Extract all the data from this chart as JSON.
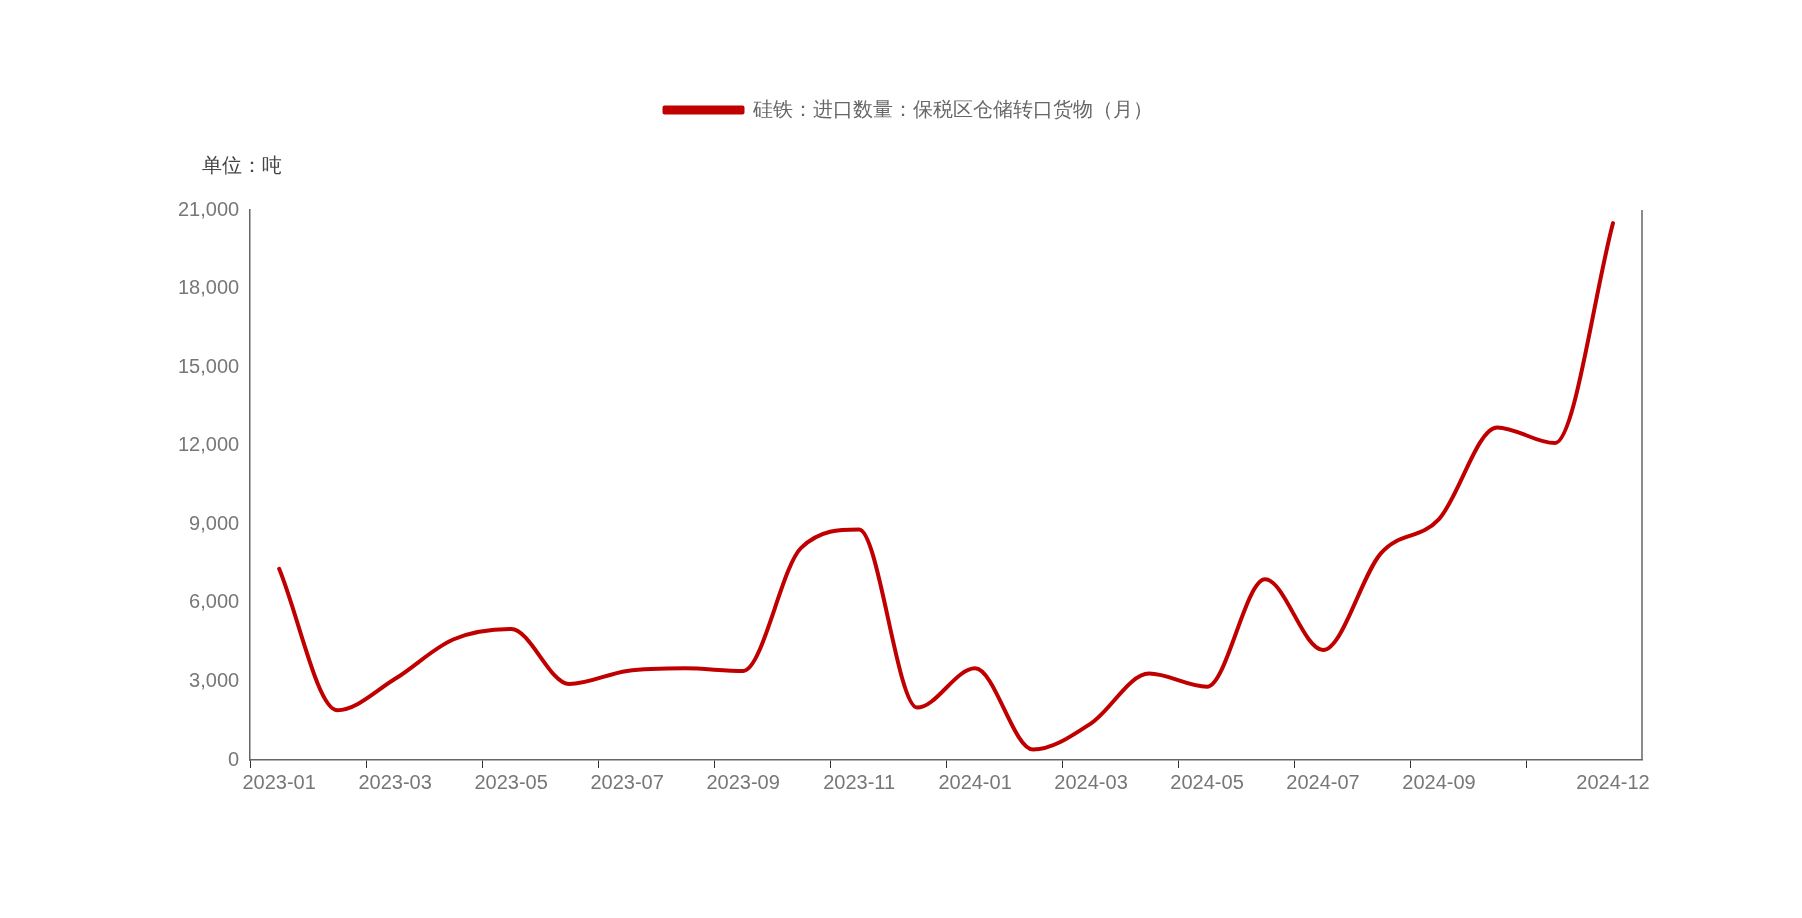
{
  "chart_data": {
    "type": "line",
    "ylabel": "单位：吨",
    "legend": "top",
    "categories": [
      "2023-01",
      null,
      "2023-03",
      null,
      "2023-05",
      null,
      "2023-07",
      null,
      "2023-09",
      null,
      "2023-11",
      null,
      "2024-01",
      null,
      "2024-03",
      null,
      "2024-05",
      null,
      "2024-07",
      null,
      "2024-09",
      null,
      null,
      "2024-12"
    ],
    "series": [
      {
        "name": "硅铁：进口数量：保税区仓储转口货物（月）",
        "color": "#c00000",
        "values": [
          7300,
          1900,
          3100,
          4600,
          5000,
          2900,
          3400,
          3500,
          3400,
          8100,
          8800,
          2000,
          3500,
          400,
          1400,
          3300,
          2800,
          6900,
          4200,
          7900,
          9200,
          12700,
          12100,
          20500
        ]
      }
    ],
    "ylim": [
      0,
      21000
    ],
    "yticks": [
      {
        "value": 0,
        "label": "0"
      },
      {
        "value": 3000,
        "label": "3,000"
      },
      {
        "value": 6000,
        "label": "6,000"
      },
      {
        "value": 9000,
        "label": "9,000"
      },
      {
        "value": 12000,
        "label": "12,000"
      },
      {
        "value": 15000,
        "label": "15,000"
      },
      {
        "value": 18000,
        "label": "18,000"
      },
      {
        "value": 21000,
        "label": "21,000"
      }
    ],
    "marker": "none",
    "line_style": "solid"
  }
}
